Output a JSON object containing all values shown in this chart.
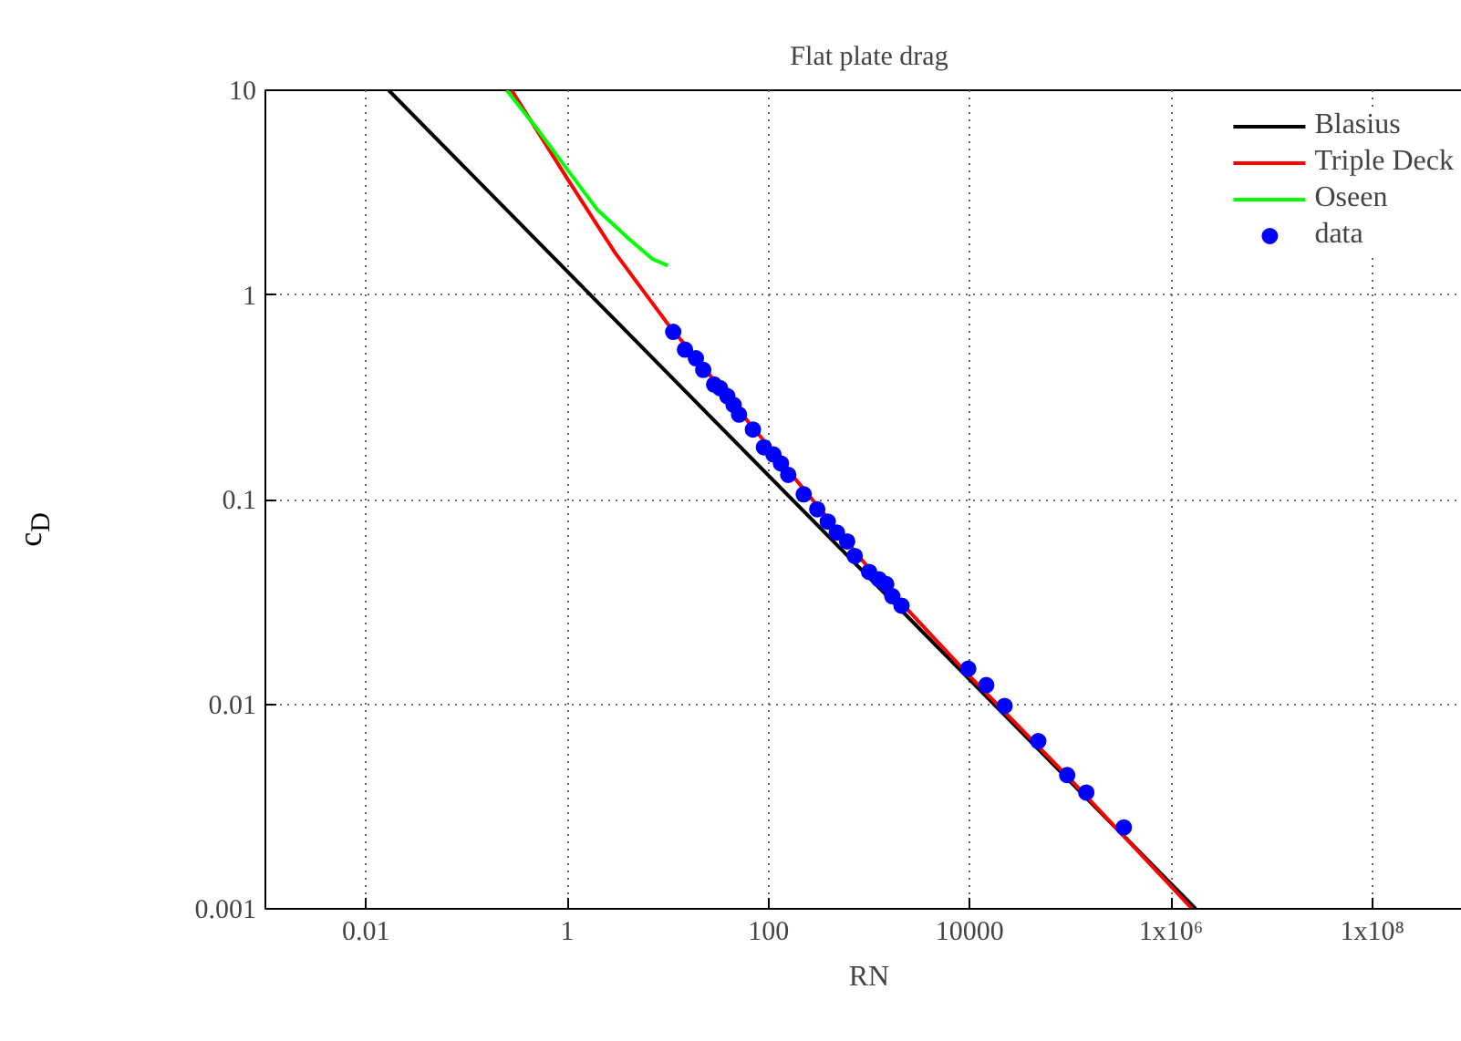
{
  "chart_data": {
    "type": "line",
    "title": "Flat plate drag",
    "xlabel": "RN",
    "ylabel": "c$_{D}$",
    "log": "xy",
    "grid": true,
    "legend": "top right",
    "xlim": [
      0.001,
      1000000000
    ],
    "ylim": [
      0.001,
      10
    ],
    "xticks": [
      {
        "value": 0.01,
        "label": "0.01"
      },
      {
        "value": 1,
        "label": "1"
      },
      {
        "value": 100,
        "label": "100"
      },
      {
        "value": 10000,
        "label": "10000"
      },
      {
        "value": 1000000,
        "label": "1x10⁶"
      },
      {
        "value": 100000000,
        "label": "1x10⁸"
      }
    ],
    "yticks": [
      {
        "value": 0.001,
        "label": "0.001"
      },
      {
        "value": 0.01,
        "label": "0.01"
      },
      {
        "value": 0.1,
        "label": "0.1"
      },
      {
        "value": 1,
        "label": "1"
      },
      {
        "value": 10,
        "label": "10"
      }
    ],
    "series": [
      {
        "name": "Blasius",
        "type": "line",
        "color": "#000000",
        "x": [
          0.0168,
          1760000
        ],
        "values": [
          10,
          0.001
        ]
      },
      {
        "name": "Triple Deck",
        "type": "line",
        "color": "#ff0000",
        "x": [
          0.28,
          1,
          3,
          10,
          1000,
          10000,
          100000,
          1620000
        ],
        "values": [
          10,
          3.7,
          1.6,
          0.72,
          0.046,
          0.0137,
          0.0043,
          0.001
        ]
      },
      {
        "name": "Oseen",
        "type": "line",
        "color": "#00ff00",
        "x": [
          0.25,
          0.5,
          1,
          2,
          4,
          7,
          10
        ],
        "values": [
          10,
          6.5,
          4.1,
          2.6,
          1.9,
          1.5,
          1.39
        ]
      },
      {
        "name": "data",
        "type": "scatter",
        "color": "#0000ff",
        "marker": "circle",
        "x": [
          11.3,
          14.8,
          19,
          22.5,
          28.8,
          33,
          39,
          45,
          51,
          70,
          90,
          112,
          133,
          157,
          224,
          305,
          388,
          478,
          605,
          720,
          1000,
          1250,
          1480,
          1700,
          2100,
          9660,
          14600,
          22200,
          48000,
          93000,
          144000,
          340000
        ],
        "values": [
          0.66,
          0.54,
          0.49,
          0.43,
          0.365,
          0.35,
          0.32,
          0.29,
          0.26,
          0.22,
          0.18,
          0.166,
          0.15,
          0.132,
          0.106,
          0.0896,
          0.078,
          0.069,
          0.0624,
          0.053,
          0.0443,
          0.0408,
          0.0386,
          0.0337,
          0.0303,
          0.0149,
          0.0124,
          0.0098,
          0.0066,
          0.0045,
          0.0037,
          0.0025
        ]
      }
    ]
  }
}
